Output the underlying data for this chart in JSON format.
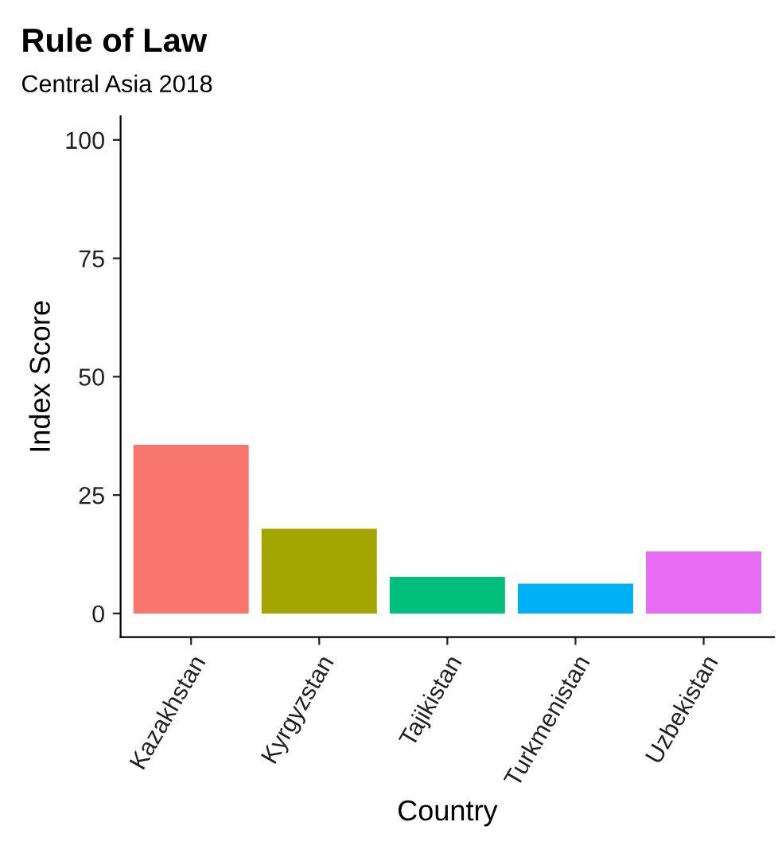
{
  "chart_data": {
    "type": "bar",
    "title": "Rule of Law",
    "subtitle": "Central Asia 2018",
    "xlabel": "Country",
    "ylabel": "Index Score",
    "categories": [
      "Kazakhstan",
      "Kyrgyzstan",
      "Tajikistan",
      "Turkmenistan",
      "Uzbekistan"
    ],
    "values": [
      35.6,
      17.9,
      7.7,
      6.3,
      13.1
    ],
    "colors": [
      "#f8766d",
      "#a3a500",
      "#00bf7d",
      "#00b0f6",
      "#e76bf3"
    ],
    "ylim": [
      -5,
      105
    ],
    "yticks": [
      0,
      25,
      50,
      75,
      100
    ],
    "grid": false,
    "legend": false
  }
}
